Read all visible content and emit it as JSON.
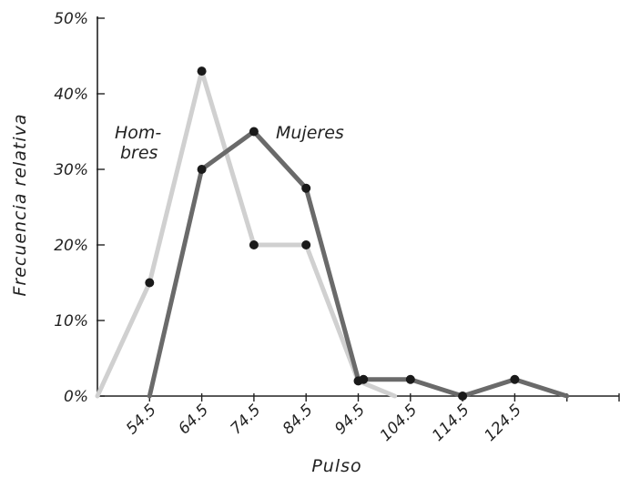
{
  "chart_data": {
    "type": "line",
    "title": "",
    "xlabel": "Pulso",
    "ylabel": "Frecuencia relativa",
    "x_ticks": [
      "54.5",
      "64.5",
      "74.5",
      "84.5",
      "94.5",
      "104.5",
      "114.5",
      "124.5"
    ],
    "y_ticks": [
      "0%",
      "10%",
      "20%",
      "30%",
      "40%",
      "50%"
    ],
    "xlim": [
      44.5,
      144.5
    ],
    "ylim": [
      0,
      50
    ],
    "grid": false,
    "legend": "none",
    "series": [
      {
        "name": "Hombres",
        "color": "#d0d0d0",
        "markers": true,
        "x": [
          44.5,
          54.5,
          64.5,
          74.5,
          84.5,
          94.5,
          101.5
        ],
        "y": [
          0,
          15,
          43,
          20,
          20,
          2,
          0
        ],
        "marker_x": [
          54.5,
          64.5,
          74.5,
          84.5,
          94.5
        ],
        "marker_y": [
          15,
          43,
          20,
          20,
          2
        ]
      },
      {
        "name": "Mujeres",
        "color": "#6a6a6a",
        "markers": true,
        "x": [
          54.5,
          64.5,
          74.5,
          84.5,
          94.5,
          95.5,
          104.5,
          114.5,
          124.5,
          134.5
        ],
        "y": [
          0,
          30,
          35,
          27.5,
          2.2,
          2.2,
          2.2,
          0,
          2.2,
          0
        ],
        "marker_x": [
          64.5,
          74.5,
          84.5,
          95.5,
          104.5,
          114.5,
          124.5
        ],
        "marker_y": [
          30,
          35,
          27.5,
          2.2,
          2.2,
          0,
          2.2
        ]
      }
    ],
    "series_labels": [
      {
        "series": "Hombres",
        "lines": [
          "Hom-",
          "bres"
        ]
      },
      {
        "series": "Mujeres",
        "lines": [
          "Mujeres"
        ]
      }
    ]
  }
}
